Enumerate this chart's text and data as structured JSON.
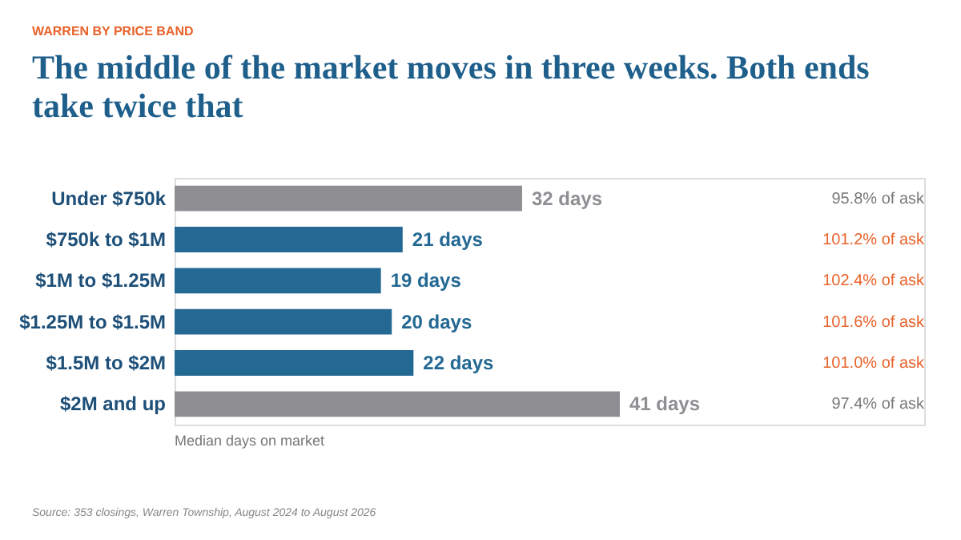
{
  "chart_data": {
    "type": "bar",
    "orientation": "horizontal",
    "subtitle": "WARREN BY PRICE BAND",
    "title": "The middle of the market moves in three weeks. Both ends take twice that",
    "xlabel": "Median days on market",
    "categories": [
      "Under $750k",
      "$750k to $1M",
      "$1M to $1.25M",
      "$1.25M to $1.5M",
      "$1.5M to $2M",
      "$2M and up"
    ],
    "values": [
      32,
      21,
      19,
      20,
      22,
      41
    ],
    "colors": [
      "#8f8e93",
      "#246993",
      "#246993",
      "#246993",
      "#246993",
      "#8f8e93"
    ],
    "value_labels": [
      "32 days",
      "21 days",
      "19 days",
      "20 days",
      "22 days",
      "41 days"
    ],
    "annotations": [
      "95.8% of ask",
      "101.2% of ask",
      "102.4% of ask",
      "101.6% of ask",
      "101.0% of ask",
      "97.4% of ask",
      "Source: 353 closings, Warren Township, August 2024 to August 2026"
    ]
  }
}
